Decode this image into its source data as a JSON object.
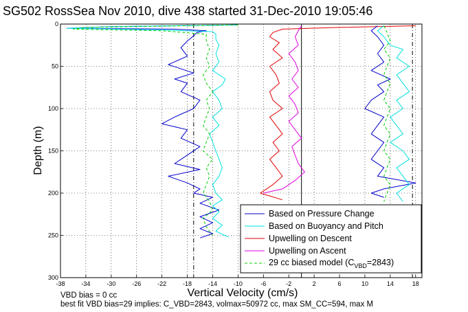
{
  "chart_data": {
    "type": "line",
    "title": "SG502 RossSea Nov 2010, dive 438 started 31-Dec-2010 19:05:46",
    "xlabel": "Vertical Velocity (cm/s)",
    "ylabel": "Depth (m)",
    "xlim": [
      -38,
      19
    ],
    "ylim": [
      300,
      0
    ],
    "y_reversed": true,
    "grid": "dotted",
    "legend_position": "bottom-right",
    "x_ticks": [
      -38,
      -34,
      -30,
      -26,
      -22,
      -18,
      -14,
      -10,
      -6,
      -2,
      2,
      6,
      10,
      14,
      18
    ],
    "y_ticks": [
      0,
      50,
      100,
      150,
      200,
      250,
      300
    ],
    "vlines": [
      {
        "x": -17,
        "style": "dash-dot",
        "color": "#000000"
      },
      {
        "x": 0,
        "style": "solid",
        "color": "#000000"
      },
      {
        "x": 17.5,
        "style": "dash-dot",
        "color": "#000000"
      }
    ],
    "series": [
      {
        "name": "Based on Pressure Change",
        "color": "#0000cc",
        "style": "solid",
        "depth": [
          1,
          3,
          5,
          6,
          8,
          10,
          14,
          20,
          28,
          38,
          48,
          58,
          65,
          70,
          80,
          90,
          100,
          110,
          118,
          125,
          135,
          145,
          155,
          165,
          172,
          180,
          188,
          195,
          200,
          205,
          212,
          220,
          228,
          235,
          242,
          248,
          253
        ],
        "values": [
          -10,
          -30,
          -37,
          -20,
          -15,
          -16.5,
          -17,
          -18,
          -19,
          -18,
          -21,
          -17,
          -20,
          -18,
          -19,
          -16,
          -17,
          -20,
          -22,
          -18,
          -19,
          -16,
          -18,
          -20,
          -16,
          -21,
          -18,
          -16,
          -17,
          -14,
          -16,
          -13,
          -16,
          -14,
          -16,
          -14,
          -16
        ]
      },
      {
        "name": "Based on Buoyancy and Pitch",
        "color": "#00e0e0",
        "style": "solid",
        "depth": [
          1,
          3,
          5,
          7,
          9,
          12,
          18,
          25,
          35,
          45,
          55,
          65,
          72,
          80,
          90,
          100,
          110,
          120,
          130,
          140,
          150,
          160,
          170,
          180,
          190,
          200,
          208,
          215,
          222,
          230,
          238,
          245,
          252
        ],
        "values": [
          -10,
          -30,
          -37,
          -22,
          -14,
          -13.5,
          -13.5,
          -13,
          -13.5,
          -13,
          -14,
          -12,
          -12.5,
          -14,
          -13,
          -12.5,
          -14,
          -13,
          -14.5,
          -14,
          -13.5,
          -13,
          -12.5,
          -13,
          -14,
          -13.5,
          -12.5,
          -14,
          -13,
          -14,
          -12.5,
          -13.5,
          -11.5
        ]
      },
      {
        "name": "Upwelling on Descent",
        "color": "#e00000",
        "style": "solid",
        "depth": [
          2,
          4,
          6,
          10,
          15,
          22,
          30,
          40,
          50,
          60,
          70,
          80,
          90,
          100,
          110,
          120,
          130,
          140,
          150,
          160,
          170,
          180,
          190,
          200,
          208
        ],
        "values": [
          18,
          6,
          -3,
          -4.5,
          -5,
          -3.5,
          -4.5,
          -3,
          -5,
          -4,
          -3.5,
          -5,
          -4.5,
          -3,
          -5,
          -4,
          -3,
          -4.5,
          -3.5,
          -5,
          -4,
          -3,
          -4.5,
          -6.5,
          -3
        ]
      },
      {
        "name": "Upwelling on Ascent",
        "color": "#e000e0",
        "style": "solid",
        "depth": [
          2,
          8,
          15,
          25,
          35,
          45,
          55,
          65,
          75,
          85,
          95,
          105,
          115,
          125,
          135,
          145,
          155,
          165,
          175,
          185,
          195,
          200
        ],
        "values": [
          0,
          -0.5,
          -1,
          -0.5,
          -2,
          -1,
          -0.5,
          -1.5,
          -0.5,
          -2,
          -1,
          -0.5,
          -2,
          -1,
          0,
          -1.5,
          -1,
          -0.5,
          0.5,
          -1,
          -3,
          -6
        ]
      },
      {
        "name": "29 cc biased model (C_VBD=2843)",
        "color": "#00cc00",
        "style": "dashed",
        "depth": [
          1,
          4,
          6,
          8,
          12,
          20,
          30,
          40,
          50,
          60,
          70,
          80,
          90,
          100,
          110,
          120,
          130,
          140,
          150,
          160,
          170,
          180,
          190,
          200,
          210,
          220,
          230,
          240,
          250
        ],
        "values": [
          -10,
          -34,
          -36,
          -22,
          -15,
          -15,
          -14.5,
          -15,
          -14.5,
          -15.5,
          -15,
          -14,
          -15,
          -14.5,
          -15,
          -15.5,
          -14.5,
          -15,
          -15.5,
          -14,
          -15,
          -14.5,
          -15,
          -15.5,
          -14.5,
          -14,
          -15.5,
          -15,
          -14
        ]
      }
    ],
    "ascent_series": [
      {
        "name": "Based on Pressure Change",
        "color": "#0000cc",
        "depth": [
          2,
          8,
          15,
          25,
          35,
          45,
          55,
          65,
          72,
          80,
          90,
          100,
          110,
          120,
          130,
          140,
          150,
          160,
          170,
          180,
          188,
          195,
          200,
          205
        ],
        "values": [
          12,
          11,
          12,
          13,
          12,
          13,
          11,
          14,
          12,
          13,
          11,
          10,
          13,
          12,
          11,
          13,
          12,
          11,
          13,
          12,
          18,
          13,
          11,
          13
        ]
      },
      {
        "name": "Based on Buoyancy and Pitch",
        "color": "#00e0e0",
        "depth": [
          2,
          8,
          15,
          25,
          30,
          40,
          50,
          60,
          70,
          80,
          90,
          100,
          110,
          120,
          130,
          140,
          150,
          160,
          170,
          180,
          190,
          200,
          210
        ],
        "values": [
          13,
          12,
          13,
          14,
          16,
          15,
          17,
          15,
          16,
          17,
          15,
          16,
          14,
          15,
          16,
          14,
          16,
          17,
          15,
          16,
          17,
          15,
          16
        ]
      },
      {
        "name": "29 cc biased model (C_VBD=2843)",
        "color": "#00cc00",
        "depth": [
          2,
          10,
          20,
          30,
          40,
          50,
          60,
          70,
          80,
          90,
          100,
          110,
          120,
          130,
          140,
          150,
          160,
          170,
          180,
          190,
          200,
          210
        ],
        "values": [
          13,
          13.5,
          14,
          13,
          14,
          13.5,
          13,
          14,
          13.5,
          13,
          14,
          13.5,
          13,
          14,
          13.5,
          13,
          14,
          13.5,
          13,
          14,
          13.5,
          13
        ]
      }
    ]
  },
  "legend": {
    "entries": [
      "Based on Pressure Change",
      "Based on Buoyancy and Pitch",
      "Upwelling on Descent",
      "Upwelling on Ascent"
    ],
    "model_prefix": "29 cc biased model (C",
    "model_sub": "VBD",
    "model_suffix": "=2843)"
  },
  "footer": {
    "line1": "VBD bias = 0 cc",
    "line2": "best fit VBD bias=29 implies: C_VBD=2843, volmax=50972 cc, max SM_CC=594, max M"
  }
}
